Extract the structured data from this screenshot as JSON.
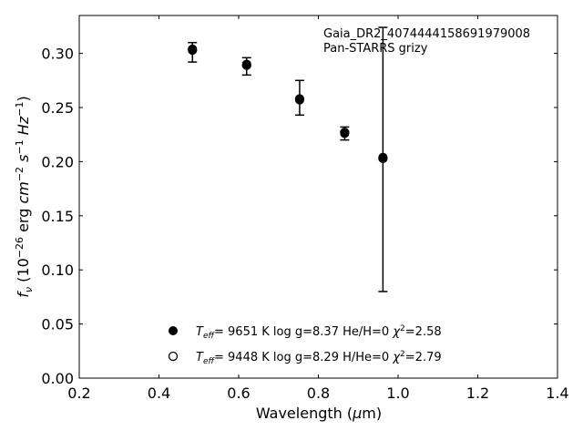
{
  "chart_data": {
    "type": "scatter",
    "annotation": [
      "Gaia_DR2_4074444158691979008",
      "Pan-STARRS grizy"
    ],
    "xlabel": "Wavelength (μm)",
    "ylabel": "f_ν (10^-26 erg cm^-2 s^-1 Hz^-1)",
    "xlim": [
      0.2,
      1.4
    ],
    "ylim": [
      0.0,
      0.335
    ],
    "xticks": [
      "0.2",
      "0.4",
      "0.6",
      "0.8",
      "1.0",
      "1.2",
      "1.4"
    ],
    "yticks": [
      "0.00",
      "0.05",
      "0.10",
      "0.15",
      "0.20",
      "0.25",
      "0.30"
    ],
    "grid": false,
    "legend_position": "bottom-center",
    "observed": {
      "x": [
        0.484,
        0.62,
        0.753,
        0.866,
        0.962
      ],
      "y": [
        0.301,
        0.288,
        0.259,
        0.226,
        0.202
      ],
      "yerr": [
        0.009,
        0.008,
        0.016,
        0.006,
        0.122
      ]
    },
    "series": [
      {
        "marker": "filled",
        "teff": "9651 K",
        "logg": "log g=8.37",
        "comp": "He/H=0",
        "chi2": "=2.58",
        "x": [
          0.484,
          0.62,
          0.753,
          0.866,
          0.962
        ],
        "y": [
          0.304,
          0.29,
          0.257,
          0.226,
          0.204
        ]
      },
      {
        "marker": "open",
        "teff": "9448 K",
        "logg": "log g=8.29",
        "comp": "H/He=0",
        "chi2": "=2.79",
        "x": [
          0.484,
          0.62,
          0.753,
          0.866,
          0.962
        ],
        "y": [
          0.303,
          0.289,
          0.258,
          0.227,
          0.203
        ]
      }
    ]
  }
}
